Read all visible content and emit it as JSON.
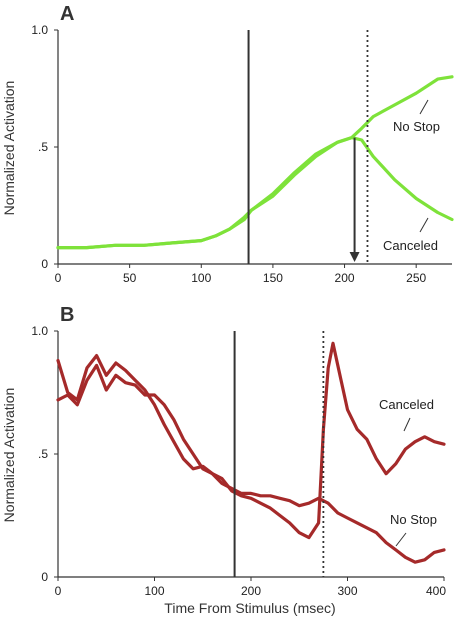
{
  "colors": {
    "panel_a": "#7ee23a",
    "panel_b": "#a52a2a",
    "marker": "#333333"
  },
  "chart_data": [
    {
      "panel": "A",
      "type": "line",
      "ylabel": "Normalized Activation",
      "xlim": [
        0,
        275
      ],
      "ylim": [
        0,
        1.0
      ],
      "x_ticks": [
        0,
        50,
        100,
        150,
        200,
        250
      ],
      "x_tick_labels": [
        "0",
        "50",
        "100",
        "150",
        "200",
        "250"
      ],
      "y_ticks": [
        0,
        0.5,
        1.0
      ],
      "y_tick_labels": [
        "0",
        ".5",
        "1.0"
      ],
      "solid_line_x": 133,
      "dotted_line_x": 216,
      "arrow": {
        "x": 207,
        "y_from": 0.54,
        "y_to": 0.0
      },
      "series": [
        {
          "name": "No Stop",
          "x": [
            0,
            20,
            40,
            60,
            80,
            100,
            110,
            120,
            130,
            135,
            150,
            165,
            180,
            195,
            205,
            212,
            220,
            235,
            250,
            265,
            275
          ],
          "y": [
            0.07,
            0.07,
            0.08,
            0.08,
            0.09,
            0.1,
            0.12,
            0.15,
            0.2,
            0.23,
            0.29,
            0.38,
            0.46,
            0.52,
            0.54,
            0.58,
            0.63,
            0.68,
            0.73,
            0.79,
            0.8
          ]
        },
        {
          "name": "Canceled",
          "x": [
            0,
            20,
            40,
            60,
            80,
            100,
            110,
            120,
            130,
            135,
            150,
            165,
            180,
            195,
            205,
            212,
            220,
            235,
            250,
            265,
            275
          ],
          "y": [
            0.07,
            0.07,
            0.08,
            0.08,
            0.09,
            0.1,
            0.12,
            0.15,
            0.19,
            0.23,
            0.3,
            0.39,
            0.47,
            0.52,
            0.54,
            0.53,
            0.46,
            0.36,
            0.28,
            0.22,
            0.19
          ]
        }
      ]
    },
    {
      "panel": "B",
      "type": "line",
      "xlabel": "Time From Stimulus (msec)",
      "ylabel": "Normalized Activation",
      "xlim": [
        0,
        400
      ],
      "ylim": [
        0,
        1.0
      ],
      "x_ticks": [
        0,
        100,
        200,
        300,
        400
      ],
      "x_tick_labels": [
        "0",
        "100",
        "200",
        "300",
        "400"
      ],
      "y_ticks": [
        0,
        0.5,
        1.0
      ],
      "y_tick_labels": [
        "0",
        ".5",
        "1.0"
      ],
      "solid_line_x": 183,
      "dotted_line_x": 275,
      "series": [
        {
          "name": "Canceled",
          "x": [
            0,
            10,
            20,
            30,
            40,
            50,
            60,
            70,
            80,
            90,
            100,
            110,
            120,
            130,
            140,
            150,
            160,
            170,
            180,
            190,
            200,
            210,
            220,
            230,
            240,
            250,
            260,
            270,
            275,
            280,
            285,
            290,
            300,
            310,
            320,
            330,
            340,
            350,
            360,
            370,
            380,
            390,
            400
          ],
          "y": [
            0.88,
            0.75,
            0.72,
            0.85,
            0.9,
            0.82,
            0.87,
            0.84,
            0.8,
            0.76,
            0.7,
            0.62,
            0.55,
            0.48,
            0.44,
            0.45,
            0.42,
            0.4,
            0.35,
            0.33,
            0.32,
            0.3,
            0.28,
            0.25,
            0.22,
            0.18,
            0.16,
            0.22,
            0.6,
            0.85,
            0.95,
            0.86,
            0.68,
            0.6,
            0.56,
            0.48,
            0.42,
            0.46,
            0.52,
            0.55,
            0.57,
            0.55,
            0.54
          ]
        },
        {
          "name": "No Stop",
          "x": [
            0,
            10,
            20,
            30,
            40,
            50,
            60,
            70,
            80,
            90,
            100,
            110,
            120,
            130,
            140,
            150,
            160,
            170,
            180,
            190,
            200,
            210,
            220,
            230,
            240,
            250,
            260,
            270,
            280,
            290,
            300,
            310,
            320,
            330,
            340,
            350,
            360,
            370,
            380,
            390,
            400
          ],
          "y": [
            0.72,
            0.74,
            0.7,
            0.8,
            0.86,
            0.76,
            0.82,
            0.79,
            0.78,
            0.74,
            0.74,
            0.7,
            0.64,
            0.56,
            0.5,
            0.44,
            0.42,
            0.38,
            0.36,
            0.34,
            0.34,
            0.33,
            0.33,
            0.32,
            0.31,
            0.29,
            0.3,
            0.32,
            0.3,
            0.26,
            0.24,
            0.22,
            0.2,
            0.18,
            0.14,
            0.11,
            0.08,
            0.06,
            0.07,
            0.1,
            0.11
          ]
        }
      ]
    }
  ]
}
